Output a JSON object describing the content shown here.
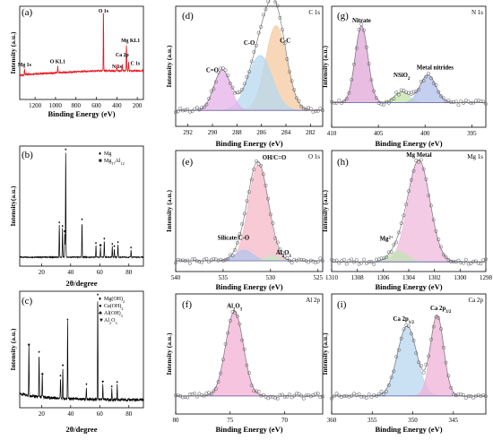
{
  "figure": {
    "panels": [
      {
        "id": "a",
        "label": "(a)",
        "corner": "",
        "xlabel": "Binding Energy (eV)",
        "ylabel": "Intensity (a.u.)",
        "xticks": [
          "1200",
          "1000",
          "800",
          "600",
          "400",
          "200"
        ],
        "annotations": [
          "O 1s",
          "Mg KL1",
          "O KL1",
          "Ca 2p",
          "N 1s",
          "C 1s",
          "Mg 1s"
        ]
      },
      {
        "id": "b",
        "label": "(b)",
        "corner": "",
        "xlabel": "2θ/degree",
        "ylabel": "Intensity(a.u.)",
        "xticks": [
          "20",
          "40",
          "60",
          "80"
        ],
        "legend": [
          "Mg",
          "Mg17Al12"
        ]
      },
      {
        "id": "c",
        "label": "(c)",
        "corner": "",
        "xlabel": "2θ/degree",
        "ylabel": "Intensity (a.u.)",
        "xticks": [
          "20",
          "40",
          "60",
          "80"
        ],
        "legend": [
          "Mg(OH)2",
          "Ca(OH)2",
          "Al(OH)3",
          "Al2O3"
        ]
      },
      {
        "id": "d",
        "label": "(d)",
        "corner": "C 1s",
        "xlabel": "Binding Energy (eV)",
        "ylabel": "Intensity (a.u.)",
        "xticks": [
          "292",
          "290",
          "288",
          "286",
          "284",
          "282"
        ],
        "annotations": [
          "C-C",
          "C-O",
          "C=O"
        ]
      },
      {
        "id": "e",
        "label": "(e)",
        "corner": "O 1s",
        "xlabel": "Binding Energy (eV)",
        "ylabel": "Intensity (a.u.)",
        "xticks": [
          "540",
          "535",
          "530",
          "525"
        ],
        "annotations": [
          "OH/C=O",
          "Silicate/C-O",
          "Al2O3"
        ]
      },
      {
        "id": "f",
        "label": "(f)",
        "corner": "Al 2p",
        "xlabel": "Binding Energy (eV)",
        "ylabel": "Intensity (a.u.)",
        "xticks": [
          "80",
          "75",
          "70"
        ],
        "annotations": [
          "Al2O3"
        ]
      },
      {
        "id": "g",
        "label": "(g)",
        "corner": "N 1s",
        "xlabel": "Binding Energy (eV)",
        "ylabel": "Intensity (a.u.)",
        "xticks": [
          "410",
          "405",
          "400",
          "395"
        ],
        "annotations": [
          "Nitrate",
          "NSiO2",
          "Metal nitrides"
        ]
      },
      {
        "id": "h",
        "label": "(h)",
        "corner": "Mg 1s",
        "xlabel": "Binding Energy (eV)",
        "ylabel": "Intensity (a.u.)",
        "xticks": [
          "1310",
          "1308",
          "1306",
          "1304",
          "1302",
          "1300",
          "1298"
        ],
        "annotations": [
          "Mg Metal",
          "Mg2+"
        ]
      },
      {
        "id": "i",
        "label": "(i)",
        "corner": "Ca 2p",
        "xlabel": "Binding Energy (eV)",
        "ylabel": "Intensity (a.u.)",
        "xticks": [
          "360",
          "355",
          "350",
          "345"
        ],
        "annotations": [
          "Ca 2p1/2",
          "Ca 2p3/2"
        ]
      }
    ]
  },
  "chart_data": [
    {
      "type": "line",
      "panel": "a",
      "title": "",
      "xlabel": "Binding Energy (eV)",
      "ylabel": "Intensity (a.u.)",
      "xlim": [
        1350,
        140
      ],
      "reverse_x": true,
      "color": "#e8141c",
      "peaks": [
        {
          "x": 1303,
          "h": 0.06
        },
        {
          "x": 978,
          "h": 0.08
        },
        {
          "x": 531,
          "h": 1.0
        },
        {
          "x": 400,
          "h": 0.07
        },
        {
          "x": 347,
          "h": 0.09
        },
        {
          "x": 306,
          "h": 0.32
        },
        {
          "x": 285,
          "h": 0.12
        }
      ],
      "series": [
        {
          "values": [
            [
              1350,
              0.24
            ],
            [
              1310,
              0.25
            ],
            [
              1303,
              0.31
            ],
            [
              1290,
              0.26
            ],
            [
              1100,
              0.28
            ],
            [
              985,
              0.3
            ],
            [
              978,
              0.36
            ],
            [
              960,
              0.32
            ],
            [
              800,
              0.3
            ],
            [
              600,
              0.3
            ],
            [
              540,
              0.33
            ],
            [
              531,
              1.0
            ],
            [
              520,
              0.33
            ],
            [
              400,
              0.31
            ],
            [
              347,
              0.33
            ],
            [
              320,
              0.35
            ],
            [
              306,
              0.62
            ],
            [
              290,
              0.38
            ],
            [
              285,
              0.35
            ],
            [
              260,
              0.3
            ],
            [
              140,
              0.28
            ]
          ]
        }
      ]
    },
    {
      "type": "line",
      "panel": "b",
      "title": "",
      "xlabel": "2θ/degree",
      "ylabel": "Intensity(a.u.)",
      "xlim": [
        5,
        90
      ],
      "color": "#000000",
      "peaks": [
        {
          "x": 32.2,
          "h": 0.3,
          "phase": "Mg"
        },
        {
          "x": 34.4,
          "h": 0.27,
          "phase": "Mg"
        },
        {
          "x": 36.6,
          "h": 1.0,
          "phase": "Mg"
        },
        {
          "x": 47.8,
          "h": 0.33,
          "phase": "Mg"
        },
        {
          "x": 57.4,
          "h": 0.11,
          "phase": "Mg"
        },
        {
          "x": 63.1,
          "h": 0.15,
          "phase": "Mg"
        },
        {
          "x": 68.6,
          "h": 0.1,
          "phase": "Mg"
        },
        {
          "x": 70.0,
          "h": 0.08,
          "phase": "Mg"
        },
        {
          "x": 72.5,
          "h": 0.12,
          "phase": "Mg"
        },
        {
          "x": 81.5,
          "h": 0.07,
          "phase": "Mg"
        },
        {
          "x": 36.0,
          "h": 0.22,
          "phase": "Mg17Al12"
        },
        {
          "x": 60.5,
          "h": 0.09,
          "phase": "Mg17Al12"
        }
      ]
    },
    {
      "type": "line",
      "panel": "c",
      "title": "",
      "xlabel": "2θ/degree",
      "ylabel": "Intensity (a.u.)",
      "xlim": [
        5,
        90
      ],
      "color": "#000000",
      "peaks": [
        {
          "x": 11.3,
          "h": 0.5,
          "phase": "Al(OH)3"
        },
        {
          "x": 18.3,
          "h": 0.43,
          "phase": "Mg(OH)2"
        },
        {
          "x": 20.5,
          "h": 0.22,
          "phase": "Al(OH)3"
        },
        {
          "x": 33.0,
          "h": 0.2,
          "phase": "Mg(OH)2"
        },
        {
          "x": 34.6,
          "h": 0.3,
          "phase": "Ca(OH)2"
        },
        {
          "x": 37.9,
          "h": 0.74,
          "phase": "Mg(OH)2"
        },
        {
          "x": 50.8,
          "h": 0.12,
          "phase": "Mg(OH)2"
        },
        {
          "x": 58.6,
          "h": 1.0,
          "phase": "Mg(OH)2"
        },
        {
          "x": 62.1,
          "h": 0.14,
          "phase": "Al2O3"
        },
        {
          "x": 68.3,
          "h": 0.1,
          "phase": "Mg(OH)2"
        },
        {
          "x": 72.0,
          "h": 0.14,
          "phase": "Mg(OH)2"
        }
      ]
    },
    {
      "type": "area",
      "panel": "d",
      "title": "",
      "xlabel": "Binding Energy (eV)",
      "ylabel": "Intensity (a.u.)",
      "xlim": [
        293,
        281
      ],
      "reverse_x": true,
      "baseline": 0.1,
      "series": [
        {
          "name": "C-C",
          "center": 284.8,
          "height": 0.8,
          "fwhm": 2.0,
          "color": "#f5c9a0"
        },
        {
          "name": "C-O",
          "center": 286.1,
          "height": 0.52,
          "fwhm": 2.3,
          "color": "#b5d8ef"
        },
        {
          "name": "C=O",
          "center": 289.2,
          "height": 0.38,
          "fwhm": 1.6,
          "color": "#e6b2ea"
        }
      ]
    },
    {
      "type": "area",
      "panel": "e",
      "title": "",
      "xlabel": "Binding Energy (eV)",
      "ylabel": "Intensity (a.u.)",
      "xlim": [
        540,
        524.5
      ],
      "reverse_x": true,
      "baseline": 0.05,
      "series": [
        {
          "name": "OH/C=O",
          "center": 531.3,
          "height": 0.9,
          "fwhm": 2.4,
          "color": "#f4b8c8"
        },
        {
          "name": "Silicate/C-O",
          "center": 532.8,
          "height": 0.1,
          "fwhm": 2.2,
          "color": "#b4c6ec"
        },
        {
          "name": "Al2O3",
          "center": 529.8,
          "height": 0.05,
          "fwhm": 1.6,
          "color": "#c6e8c2"
        }
      ]
    },
    {
      "type": "area",
      "panel": "f",
      "title": "",
      "xlabel": "Binding Energy (eV)",
      "ylabel": "Intensity (a.u.)",
      "xlim": [
        80,
        66.5
      ],
      "reverse_x": true,
      "baseline": 0.12,
      "series": [
        {
          "name": "Al2O3",
          "center": 74.6,
          "height": 0.8,
          "fwhm": 1.9,
          "color": "#f4b0d6"
        }
      ]
    },
    {
      "type": "area",
      "panel": "g",
      "title": "",
      "xlabel": "Binding Energy (eV)",
      "ylabel": "Intensity (a.u.)",
      "xlim": [
        410,
        393.5
      ],
      "reverse_x": true,
      "baseline": 0.18,
      "series": [
        {
          "name": "Nitrate",
          "center": 406.8,
          "height": 0.72,
          "fwhm": 1.6,
          "color": "#e2a6d8"
        },
        {
          "name": "NSiO2",
          "center": 402.5,
          "height": 0.1,
          "fwhm": 1.8,
          "color": "#c2e2a6"
        },
        {
          "name": "Metal nitrides",
          "center": 399.7,
          "height": 0.26,
          "fwhm": 2.0,
          "color": "#b2bfeb"
        }
      ]
    },
    {
      "type": "area",
      "panel": "h",
      "title": "",
      "xlabel": "Binding Energy (eV)",
      "ylabel": "Intensity (a.u.)",
      "xlim": [
        1310,
        1298
      ],
      "reverse_x": true,
      "baseline": 0.04,
      "series": [
        {
          "name": "Mg Metal",
          "center": 1303.2,
          "height": 0.95,
          "fwhm": 2.0,
          "color": "#efbadb"
        },
        {
          "name": "Mg2+",
          "center": 1304.8,
          "height": 0.1,
          "fwhm": 1.6,
          "color": "#c3e3b5"
        }
      ]
    },
    {
      "type": "area",
      "panel": "i",
      "title": "",
      "xlabel": "Binding Energy (eV)",
      "ylabel": "Intensity (a.u.)",
      "xlim": [
        360,
        341
      ],
      "reverse_x": true,
      "baseline": 0.12,
      "series": [
        {
          "name": "Ca 2p1/2",
          "center": 350.7,
          "height": 0.66,
          "fwhm": 2.8,
          "color": "#b8d5ef"
        },
        {
          "name": "Ca 2p3/2",
          "center": 347.0,
          "height": 0.76,
          "fwhm": 1.9,
          "color": "#f0b1d6"
        }
      ]
    }
  ]
}
